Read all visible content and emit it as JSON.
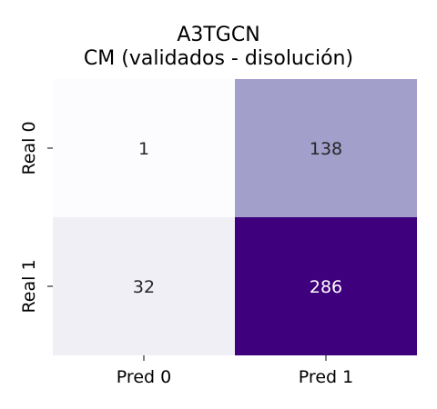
{
  "chart_data": {
    "type": "heatmap",
    "title_lines": [
      "A3TGCN",
      "CM (validados - disolución)"
    ],
    "x_tick_labels": [
      "Pred 0",
      "Pred 1"
    ],
    "y_tick_labels": [
      "Real 0",
      "Real 1"
    ],
    "matrix": [
      [
        1,
        138
      ],
      [
        32,
        286
      ]
    ],
    "colormap": "Purples",
    "value_range": [
      1,
      286
    ],
    "colorbar": false,
    "grid": false,
    "colors": {
      "low": "#fcfbfd",
      "mid_low": "#efedf5",
      "mid": "#a3a0cb",
      "high": "#3f007d",
      "text_dark": "#262626",
      "text_light": "#ffffff"
    }
  }
}
